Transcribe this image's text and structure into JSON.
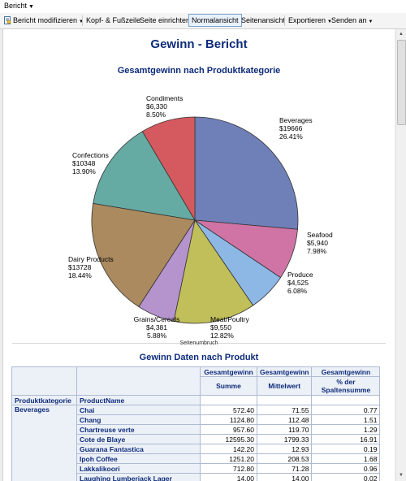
{
  "window": {
    "title": "Bericht"
  },
  "toolbar": {
    "modify": "Bericht modifizieren",
    "header_footer": "Kopf- & Fußzeile",
    "page_setup": "Seite einrichten",
    "normal_view": "Normalansicht",
    "page_view": "Seitenansicht",
    "export": "Exportieren",
    "send": "Senden an"
  },
  "report": {
    "title": "Gewinn - Bericht",
    "page_break": "Seitenumbruch",
    "table_title": "Gewinn Daten nach Produkt"
  },
  "chart_data": {
    "type": "pie",
    "title": "Gesamtgewinn nach Produktkategorie",
    "slices": [
      {
        "name": "Beverages",
        "amount": "$19666",
        "value": 26.41,
        "pct": "26.41%",
        "color": "#6f7fb8"
      },
      {
        "name": "Seafood",
        "amount": "$5,940",
        "value": 7.98,
        "pct": "7.98%",
        "color": "#cf74a4"
      },
      {
        "name": "Produce",
        "amount": "$4,525",
        "value": 6.08,
        "pct": "6.08%",
        "color": "#8db8e6"
      },
      {
        "name": "Meat/Poultry",
        "amount": "$9,550",
        "value": 12.82,
        "pct": "12.82%",
        "color": "#c1bf5a"
      },
      {
        "name": "Grains/Cereals",
        "amount": "$4,381",
        "value": 5.88,
        "pct": "5.88%",
        "color": "#b594cd"
      },
      {
        "name": "Dairy Products",
        "amount": "$13728",
        "value": 18.44,
        "pct": "18.44%",
        "color": "#aa8a5e"
      },
      {
        "name": "Confections",
        "amount": "$10348",
        "value": 13.9,
        "pct": "13.90%",
        "color": "#66aba3"
      },
      {
        "name": "Condiments",
        "amount": "$6,330",
        "value": 8.5,
        "pct": "8.50%",
        "color": "#d45a5f"
      }
    ]
  },
  "table": {
    "group_header": "Gesamtgewinn",
    "col_category": "Produktkategorie",
    "col_product": "ProductName",
    "col_sum": "Summe",
    "col_mean": "Mittelwert",
    "col_pct": "% der Spaltensumme",
    "category": "Beverages",
    "rows": [
      {
        "product": "Chai",
        "sum": "572.40",
        "mean": "71.55",
        "pct": "0.77"
      },
      {
        "product": "Chang",
        "sum": "1124.80",
        "mean": "112.48",
        "pct": "1.51"
      },
      {
        "product": "Chartreuse verte",
        "sum": "957.60",
        "mean": "119.70",
        "pct": "1.29"
      },
      {
        "product": "Cote de Blaye",
        "sum": "12595.30",
        "mean": "1799.33",
        "pct": "16.91"
      },
      {
        "product": "Guarana Fantastica",
        "sum": "142.20",
        "mean": "12.93",
        "pct": "0.19"
      },
      {
        "product": "Ipoh Coffee",
        "sum": "1251.20",
        "mean": "208.53",
        "pct": "1.68"
      },
      {
        "product": "Lakkalikoori",
        "sum": "712.80",
        "mean": "71.28",
        "pct": "0.96"
      },
      {
        "product": "Laughing Lumberjack Lager",
        "sum": "14.00",
        "mean": "14.00",
        "pct": "0.02"
      }
    ]
  }
}
